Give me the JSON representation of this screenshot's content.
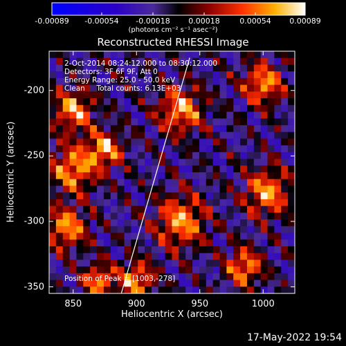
{
  "chart_data": {
    "type": "heatmap",
    "title": "Reconstructed RHESSI Image",
    "xlabel": "Heliocentric X (arcsec)",
    "ylabel": "Heliocentric Y (arcsec)",
    "xlim": [
      831,
      1025
    ],
    "ylim": [
      -355,
      -170
    ],
    "x_ticks": [
      "850",
      "900",
      "950",
      "1000"
    ],
    "x_tick_values": [
      850,
      900,
      950,
      1000
    ],
    "y_ticks": [
      "-200",
      "-250",
      "-300",
      "-350"
    ],
    "y_tick_values": [
      -200,
      -250,
      -300,
      -350
    ],
    "colorbar": {
      "colormap": "hot",
      "range": [
        -0.00089,
        0.00089
      ],
      "ticks": [
        "-0.00089",
        "-0.00054",
        "-0.00018",
        "0.00018",
        "0.00054",
        "0.00089"
      ],
      "tick_values": [
        -0.00089,
        -0.00054,
        -0.00018,
        0.00018,
        0.00054,
        0.00089
      ],
      "label": "(photons cm⁻² s⁻¹ asec⁻²)"
    },
    "limb_line": [
      [
        888,
        -355
      ],
      [
        942,
        -175
      ]
    ],
    "peak_position": [
      1003,
      -278
    ],
    "annotations": [
      "2-Oct-2014 08:24:12.000 to 08:30:12.000",
      "Detectors: 3F 6F 9F, Att 0",
      "Energy Range: 25.0 - 50.0 keV",
      "Clean     Total counts: 6.13E+03"
    ],
    "peak_label": "Position of Peak = [1003,-278]"
  },
  "footer": {
    "date": "17-May-2022 19:54"
  }
}
